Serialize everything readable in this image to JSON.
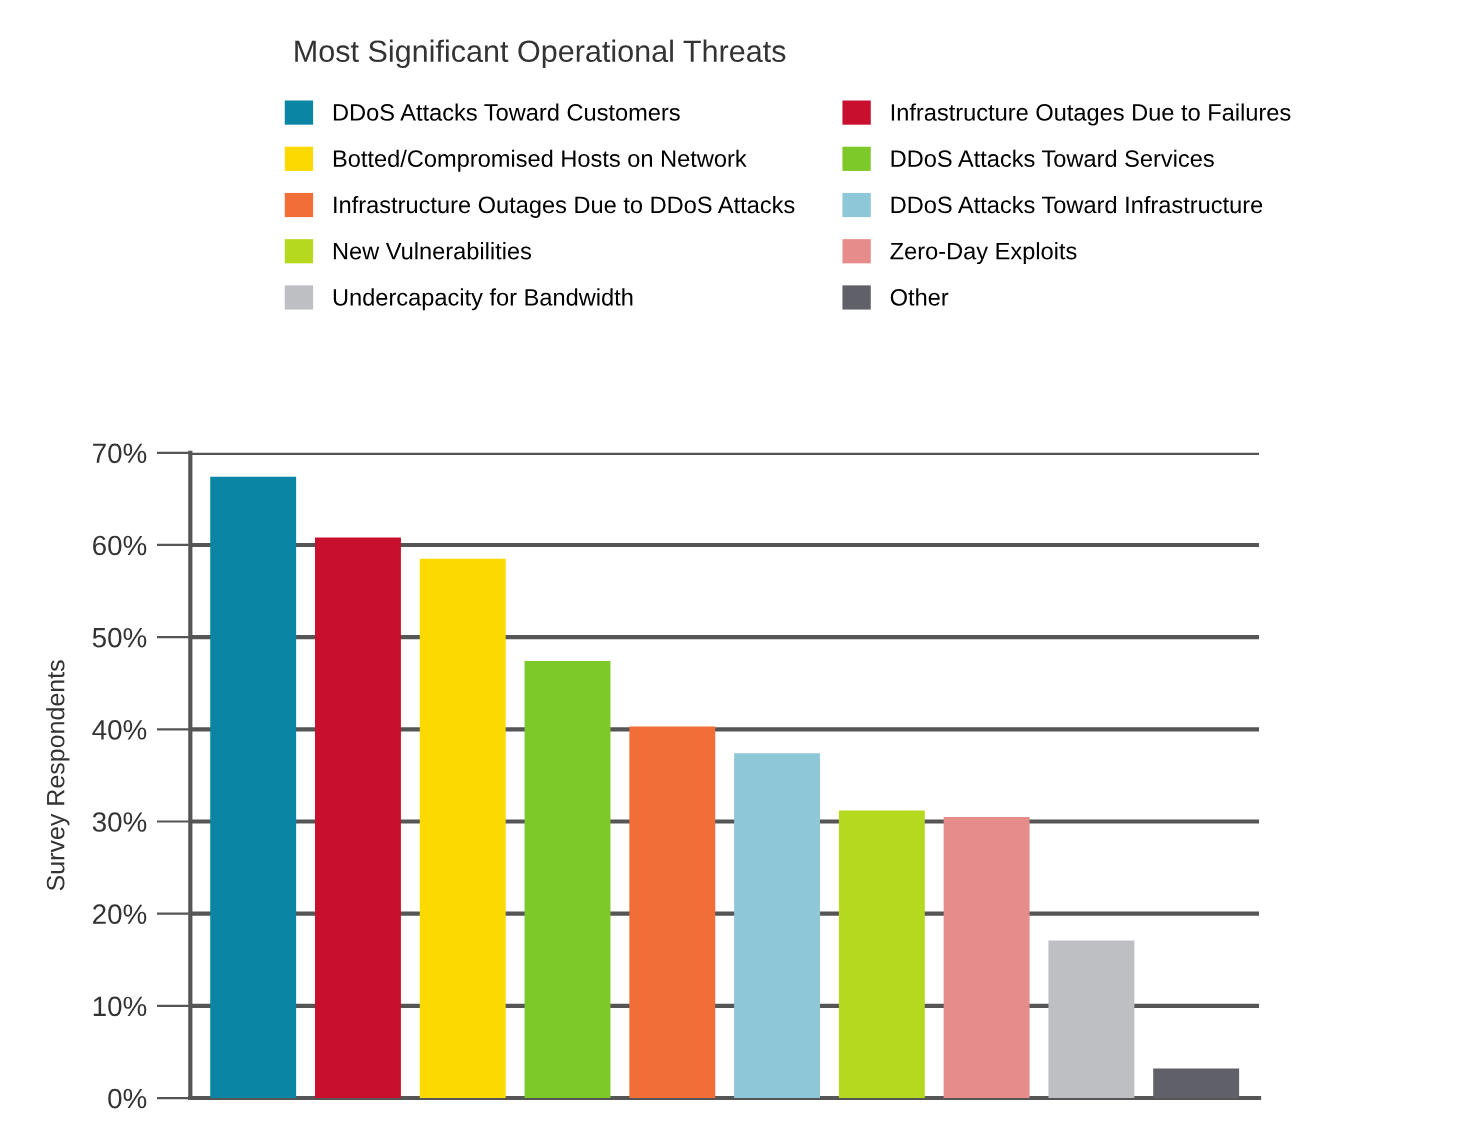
{
  "chart_data": {
    "type": "bar",
    "title": "Most Significant Operational Threats",
    "ylabel": "Survey Respondents",
    "categories": [
      null,
      null,
      null,
      null,
      null,
      null,
      null,
      null,
      null,
      null
    ],
    "series": [
      {
        "name": "DDoS Attacks Toward Customers",
        "color": "#0a86a4",
        "values": [
          67.4,
          null,
          null,
          null,
          null,
          null,
          null,
          null,
          null,
          null
        ]
      },
      {
        "name": "Infrastructure Outages Due to Failures",
        "color": "#c8102e",
        "values": [
          null,
          60.8,
          null,
          null,
          null,
          null,
          null,
          null,
          null,
          null
        ]
      },
      {
        "name": "Botted/Compromised Hosts on Network",
        "color": "#fcd900",
        "values": [
          null,
          null,
          58.5,
          null,
          null,
          null,
          null,
          null,
          null,
          null
        ]
      },
      {
        "name": "DDoS Attacks Toward Services",
        "color": "#7ec92a",
        "values": [
          null,
          null,
          null,
          47.4,
          null,
          null,
          null,
          null,
          null,
          null
        ]
      },
      {
        "name": "Infrastructure Outages Due to DDoS Attacks",
        "color": "#f26e38",
        "values": [
          null,
          null,
          null,
          null,
          40.3,
          null,
          null,
          null,
          null,
          null
        ]
      },
      {
        "name": "DDoS Attacks Toward Infrastructure",
        "color": "#8ec8d8",
        "values": [
          null,
          null,
          null,
          null,
          null,
          37.4,
          null,
          null,
          null,
          null
        ]
      },
      {
        "name": "New Vulnerabilities",
        "color": "#b5d91f",
        "values": [
          null,
          null,
          null,
          null,
          null,
          null,
          31.2,
          null,
          null,
          null
        ]
      },
      {
        "name": "Zero-Day Exploits",
        "color": "#e68c8a",
        "values": [
          null,
          null,
          null,
          null,
          null,
          null,
          null,
          30.5,
          null,
          null
        ]
      },
      {
        "name": "Undercapacity for Bandwidth",
        "color": "#bdbfc2",
        "values": [
          null,
          null,
          null,
          null,
          null,
          null,
          null,
          null,
          17.1,
          null
        ]
      },
      {
        "name": "Other",
        "color": "#606168",
        "values": [
          null,
          null,
          null,
          null,
          null,
          null,
          null,
          null,
          null,
          3.2
        ]
      }
    ],
    "ylim": [
      0,
      70
    ],
    "yticks": [
      {
        "value": 0,
        "label": "0%"
      },
      {
        "value": 10,
        "label": "10%"
      },
      {
        "value": 20,
        "label": "20%"
      },
      {
        "value": 30,
        "label": "30%"
      },
      {
        "value": 40,
        "label": "40%"
      },
      {
        "value": 50,
        "label": "50%"
      },
      {
        "value": 60,
        "label": "60%"
      },
      {
        "value": 70,
        "label": "70%"
      }
    ],
    "grid": "y",
    "legend": "top"
  }
}
